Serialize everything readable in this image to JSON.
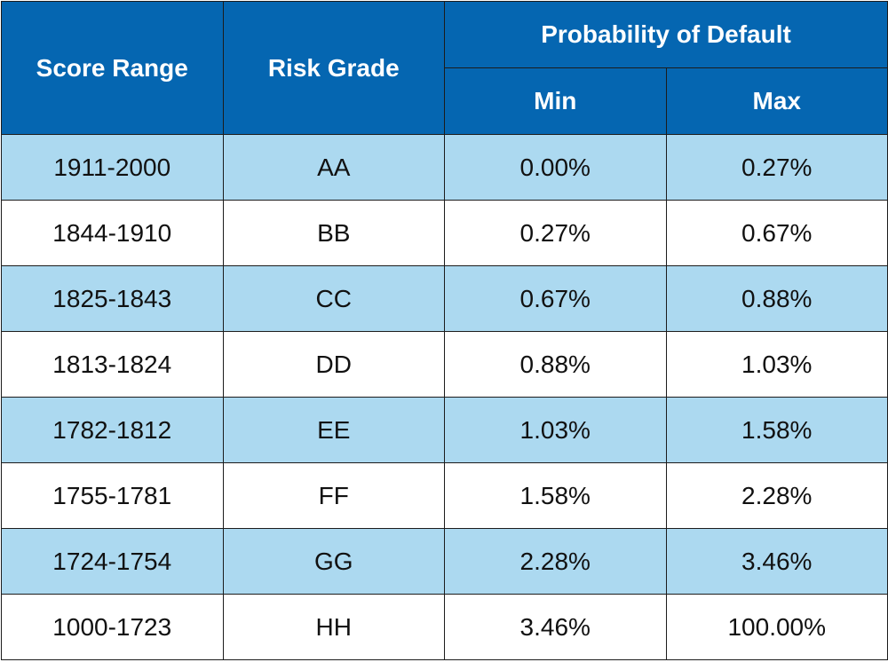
{
  "header": {
    "score_range": "Score Range",
    "risk_grade": "Risk Grade",
    "probability_of_default": "Probability of Default",
    "min": "Min",
    "max": "Max"
  },
  "rows": [
    {
      "score_range": "1911-2000",
      "risk_grade": "AA",
      "min": "0.00%",
      "max": "0.27%"
    },
    {
      "score_range": "1844-1910",
      "risk_grade": "BB",
      "min": "0.27%",
      "max": "0.67%"
    },
    {
      "score_range": "1825-1843",
      "risk_grade": "CC",
      "min": "0.67%",
      "max": "0.88%"
    },
    {
      "score_range": "1813-1824",
      "risk_grade": "DD",
      "min": "0.88%",
      "max": "1.03%"
    },
    {
      "score_range": "1782-1812",
      "risk_grade": "EE",
      "min": "1.03%",
      "max": "1.58%"
    },
    {
      "score_range": "1755-1781",
      "risk_grade": "FF",
      "min": "1.58%",
      "max": "2.28%"
    },
    {
      "score_range": "1724-1754",
      "risk_grade": "GG",
      "min": "2.28%",
      "max": "3.46%"
    },
    {
      "score_range": "1000-1723",
      "risk_grade": "HH",
      "min": "3.46%",
      "max": "100.00%"
    }
  ],
  "colors": {
    "header_bg": "#0566b1",
    "header_text": "#ffffff",
    "shaded_row_bg": "#acd9f0",
    "plain_row_bg": "#ffffff",
    "border": "#1c1c1c"
  }
}
